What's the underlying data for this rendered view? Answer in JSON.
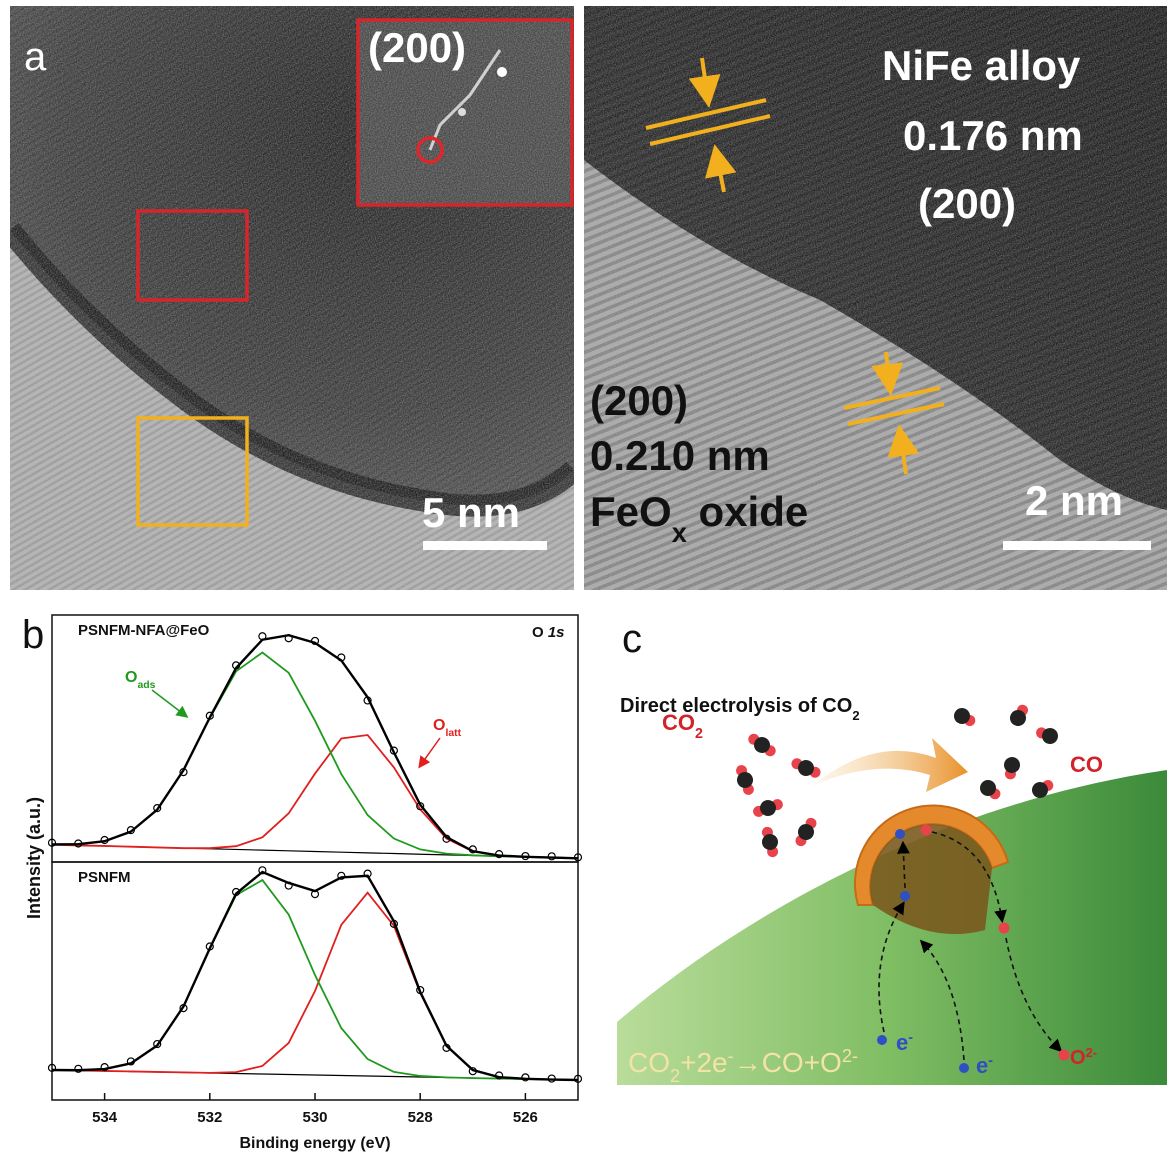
{
  "panel_a": {
    "label": "a",
    "inset_label": "(200)",
    "scale_bar_left": "5 nm",
    "alloy_labels": {
      "phase": "NiFe alloy",
      "spacing": "0.176 nm",
      "plane": "(200)"
    },
    "oxide_labels": {
      "plane": "(200)",
      "spacing": "0.210 nm",
      "phase": [
        "FeO",
        {
          "sub": "x"
        },
        " oxide"
      ]
    },
    "scale_bar_right": "2 nm"
  },
  "panel_b": {
    "label": "b",
    "ylabel": "Intensity (a.u.)"
  },
  "chart_data": [
    {
      "type": "line",
      "title": "PSNFM-NFA@FeO",
      "annotation": [
        "O ",
        {
          "i": "1s"
        }
      ],
      "peak_labels": [
        {
          "text": [
            "O",
            {
              "sub": "ads"
            }
          ],
          "color": "#1f9a1f"
        },
        {
          "text": [
            "O",
            {
              "sub": "latt"
            }
          ],
          "color": "#e01f1f"
        }
      ],
      "x": [
        535,
        534.5,
        534,
        533.5,
        533,
        532.5,
        532,
        531.5,
        531,
        530.5,
        530,
        529.5,
        529,
        528.5,
        528,
        527.5,
        527,
        526.5,
        526,
        525.5,
        525
      ],
      "xlim": [
        535,
        525
      ],
      "ylim": [
        0,
        100
      ],
      "series": [
        {
          "color": "#000000",
          "style": "line",
          "values": [
            7,
            6.73,
            6.45,
            6.18,
            5.9,
            5.63,
            5.35,
            5.08,
            4.8,
            4.53,
            4.25,
            3.98,
            3.7,
            3.43,
            3.15,
            2.88,
            2.6,
            2.33,
            2.05,
            1.78,
            1.5
          ]
        },
        {
          "color": "#e01f1f",
          "style": "line",
          "values": [
            7,
            6.7,
            6.5,
            6.2,
            5.9,
            5.6,
            5.6,
            6.4,
            10.0,
            19.7,
            35.8,
            50.0,
            51.4,
            38.3,
            21.3,
            9.5,
            4.3,
            2.6,
            2.1,
            1.8,
            1.5
          ]
        },
        {
          "color": "#1f9a1f",
          "style": "line",
          "values": [
            7.1,
            7.2,
            8.4,
            12.3,
            21.2,
            37.2,
            58.3,
            77.2,
            84.8,
            76.6,
            57.2,
            35.6,
            19.0,
            9.5,
            5.1,
            3.4,
            2.7,
            2.3,
            2.1,
            1.8,
            1.5
          ]
        },
        {
          "color": "#000000",
          "style": "line",
          "values": [
            7.1,
            7.2,
            8.4,
            12.3,
            21.2,
            37.2,
            58.5,
            78.5,
            90.0,
            91.8,
            88.7,
            81.6,
            66.7,
            44.4,
            23.2,
            10.1,
            4.4,
            2.6,
            2.1,
            1.8,
            1.5
          ]
        },
        {
          "color": "#000000",
          "style": "markers",
          "values": [
            7.8,
            7.5,
            8.9,
            12.9,
            21.8,
            36.4,
            59.2,
            79.6,
            91.4,
            90.6,
            89.5,
            82.8,
            65.4,
            45.1,
            22.6,
            9.4,
            5.1,
            3.2,
            2.4,
            2.3,
            1.9
          ]
        }
      ]
    },
    {
      "type": "line",
      "title": "PSNFM",
      "xlabel": "Binding energy (eV)",
      "x": [
        535,
        534.5,
        534,
        533.5,
        533,
        532.5,
        532,
        531.5,
        531,
        530.5,
        530,
        529.5,
        529,
        528.5,
        528,
        527.5,
        527,
        526.5,
        526,
        525.5,
        525
      ],
      "xlim": [
        535,
        525
      ],
      "ylim": [
        0,
        100
      ],
      "xticks": [
        534,
        532,
        530,
        528,
        526
      ],
      "series": [
        {
          "color": "#000000",
          "style": "line",
          "values": [
            12.6,
            12.39,
            12.18,
            11.97,
            11.76,
            11.55,
            11.34,
            11.13,
            10.92,
            10.71,
            10.5,
            10.29,
            10.08,
            9.87,
            9.66,
            9.45,
            9.24,
            9.03,
            8.82,
            8.61,
            8.4
          ]
        },
        {
          "color": "#e01f1f",
          "style": "line",
          "values": [
            12.6,
            12.4,
            12.2,
            12.0,
            11.8,
            11.6,
            11.4,
            11.7,
            14.3,
            24.0,
            45.8,
            73.6,
            87.1,
            73.2,
            45.0,
            22.8,
            12.6,
            9.6,
            8.9,
            8.6,
            8.4
          ]
        },
        {
          "color": "#1f9a1f",
          "style": "line",
          "values": [
            12.6,
            12.5,
            13.0,
            15.4,
            22.9,
            39.3,
            63.6,
            86.1,
            92.4,
            77.9,
            52.5,
            30.2,
            17.2,
            11.8,
            10.1,
            9.5,
            9.2,
            9.0,
            8.8,
            8.6,
            8.4
          ]
        },
        {
          "color": "#000000",
          "style": "line",
          "values": [
            12.6,
            12.5,
            13.0,
            15.4,
            22.9,
            39.3,
            63.7,
            86.7,
            95.8,
            91.2,
            87.8,
            93.5,
            94.2,
            75.1,
            45.4,
            22.8,
            12.6,
            9.6,
            8.9,
            8.6,
            8.4
          ]
        },
        {
          "color": "#000000",
          "style": "markers",
          "values": [
            13.5,
            13.1,
            13.8,
            16.2,
            23.5,
            38.6,
            64.5,
            87.4,
            96.5,
            90.1,
            86.5,
            94.2,
            95.1,
            74.0,
            46.2,
            21.9,
            12.1,
            10.3,
            9.5,
            9.0,
            8.9
          ]
        }
      ]
    }
  ],
  "panel_c": {
    "label": "c",
    "title": [
      "Direct electrolysis of CO",
      {
        "sub": "2"
      }
    ],
    "reactant": [
      "CO",
      {
        "sub": "2"
      }
    ],
    "product": "CO",
    "electron_labels": [
      [
        "e",
        {
          "sup": "-"
        }
      ],
      [
        "e",
        {
          "sup": "-"
        }
      ]
    ],
    "ion": [
      "O",
      {
        "sup": "2-"
      }
    ],
    "equation": [
      "CO",
      {
        "sub": "2"
      },
      "+2e",
      {
        "sup": "-"
      },
      "→CO+O",
      {
        "sup": "2-"
      }
    ]
  }
}
